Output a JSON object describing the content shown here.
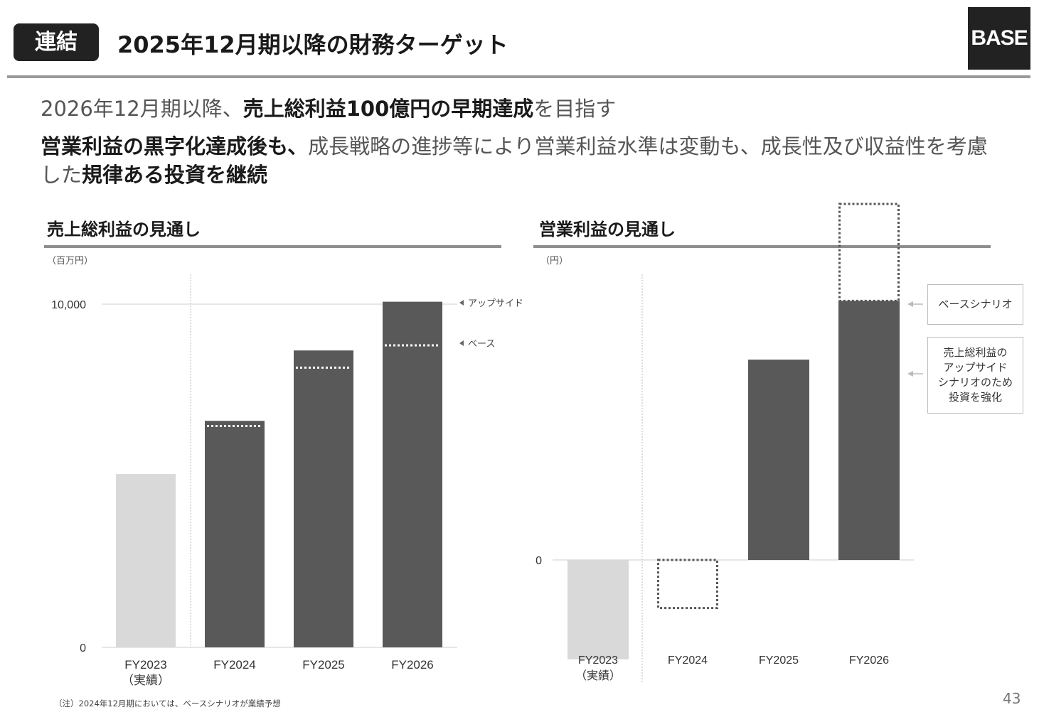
{
  "header": {
    "tag": "連結",
    "title": "2025年12月期以降の財務ターゲット",
    "logo": "BASE"
  },
  "lead": {
    "line1_a": "2026年12月期以降、",
    "line1_b": "売上総利益100億円の早期達成",
    "line1_c": "を目指す",
    "line2_a": "営業利益の黒字化達成後も、",
    "line2_b": "成長戦略の進捗等により営業利益水準は変動も、成長性及び収益性を考慮した",
    "line2_c": "規律ある投資を継続"
  },
  "left_section": {
    "title": "売上総利益の見通し",
    "unit": "（百万円）"
  },
  "right_section": {
    "title": "営業利益の見通し",
    "unit": "（円）"
  },
  "chart_data": [
    {
      "type": "bar",
      "title": "売上総利益の見通し",
      "unit": "（百万円）",
      "categories": [
        "FY2023",
        "FY2024",
        "FY2025",
        "FY2026"
      ],
      "category_sublabels": [
        "（実績）",
        "",
        "",
        ""
      ],
      "yticks": [
        {
          "value": 0,
          "label": "0"
        },
        {
          "value": 10000,
          "label": "10,000"
        }
      ],
      "ylim": [
        0,
        10000
      ],
      "series": [
        {
          "values": [
            5050,
            6600,
            8650,
            10070
          ],
          "colors": [
            "#d9d9d9",
            "#595959",
            "#595959",
            "#595959"
          ]
        }
      ],
      "base_markers": [
        null,
        6450,
        8150,
        8800
      ],
      "annotations": [
        "アップサイド",
        "ベース"
      ],
      "grid": "10,000 only"
    },
    {
      "type": "bar",
      "title": "営業利益の見通し",
      "unit": "（円）",
      "categories": [
        "FY2023",
        "FY2024",
        "FY2025",
        "FY2026"
      ],
      "category_sublabels": [
        "（実績）",
        "",
        "",
        ""
      ],
      "yticks": [
        {
          "value": 0,
          "label": "0"
        }
      ],
      "ylim": [
        -120,
        430
      ],
      "series": [
        {
          "values": [
            -120,
            0,
            242,
            313
          ],
          "colors": [
            "#d9d9d9",
            null,
            "#595959",
            "#595959"
          ]
        }
      ],
      "base_scenario_dotted": [
        null,
        -58,
        242,
        430
      ],
      "annotations": [
        "ベースシナリオ",
        "売上総利益の\nアップサイド\nシナリオのため\n投資を強化"
      ]
    }
  ],
  "footnote": "（注）2024年12月期においては、ベースシナリオが業績予想",
  "page_number": "43"
}
